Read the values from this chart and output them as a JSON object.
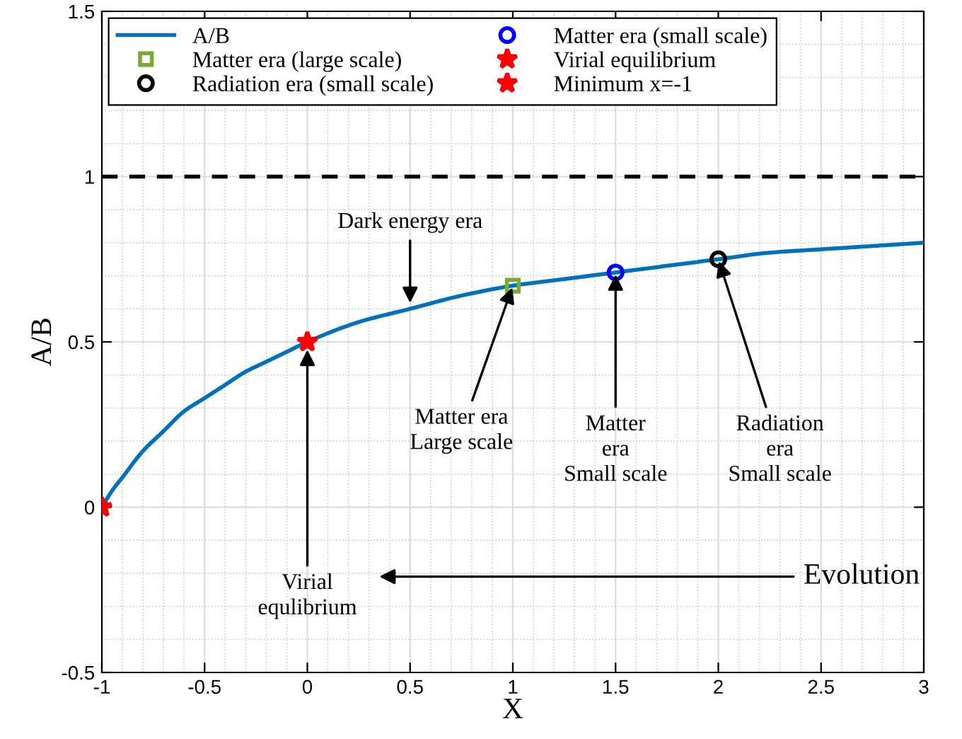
{
  "chart_data": {
    "type": "line",
    "xlabel": "X",
    "ylabel": "A/B",
    "xlim": [
      -1,
      3
    ],
    "xticks": [
      {
        "value": -1,
        "label": "-1"
      },
      {
        "value": -0.5,
        "label": "-0.5"
      },
      0,
      0.5,
      1,
      1.5,
      2,
      2.5,
      3
    ],
    "ylim": [
      -0.5,
      1.5
    ],
    "yticks": [
      {
        "value": -0.5,
        "label": "-0.5"
      },
      0,
      0.5,
      1,
      1.5
    ],
    "grid": true,
    "legend": "top left",
    "series": [
      {
        "name": "A/B",
        "color": "#0072bd",
        "marker": "none",
        "line_style": "solid",
        "x": [
          -1,
          -0.95,
          -0.9,
          -0.8,
          -0.7,
          -0.6,
          -0.5,
          -0.4,
          -0.3,
          -0.2,
          -0.1,
          0,
          0.25,
          0.5,
          0.75,
          1,
          1.25,
          1.5,
          1.75,
          2,
          2.25,
          2.5,
          2.75,
          3
        ],
        "values": [
          0,
          0.05,
          0.09,
          0.17,
          0.23,
          0.29,
          0.33,
          0.37,
          0.41,
          0.44,
          0.47,
          0.5,
          0.56,
          0.6,
          0.64,
          0.67,
          0.69,
          0.71,
          0.73,
          0.75,
          0.77,
          0.78,
          0.79,
          0.8
        ]
      },
      {
        "name": "Matter era (large scale)",
        "type": "scatter",
        "color": "#77ac30",
        "marker": "square",
        "x": [
          1
        ],
        "values": [
          0.67
        ]
      },
      {
        "name": "Radiation era (small scale)",
        "type": "scatter",
        "color": "#000000",
        "marker": "circle",
        "x": [
          2
        ],
        "values": [
          0.75
        ]
      },
      {
        "name": "Matter era (small scale)",
        "type": "scatter",
        "color": "#0000ff",
        "marker": "circle",
        "x": [
          1.5
        ],
        "values": [
          0.71
        ]
      },
      {
        "name": "Virial equilibrium",
        "type": "scatter",
        "color": "#ff0000",
        "marker": "star",
        "x": [
          0
        ],
        "values": [
          0.5
        ]
      },
      {
        "name": "Minimum x=-1",
        "type": "scatter",
        "color": "#ff0000",
        "marker": "star",
        "x": [
          -1
        ],
        "values": [
          0
        ]
      }
    ],
    "ref_lines": [
      {
        "axis": "y",
        "value": 1,
        "color": "#000000",
        "line_style": "dashed"
      }
    ],
    "annotations": [
      {
        "text": "Dark energy era",
        "x": 0.5,
        "y": 0.6
      },
      {
        "text": "Matter era\nLarge scale",
        "x": 1,
        "y": 0.67
      },
      {
        "text": "Matter\nera\nSmall scale",
        "x": 1.5,
        "y": 0.71
      },
      {
        "text": "Radiation\nera\nSmall scale",
        "x": 2,
        "y": 0.75
      },
      {
        "text": "Virial\nequlibrium",
        "x": 0,
        "y": 0.5
      },
      "Evolution"
    ]
  }
}
